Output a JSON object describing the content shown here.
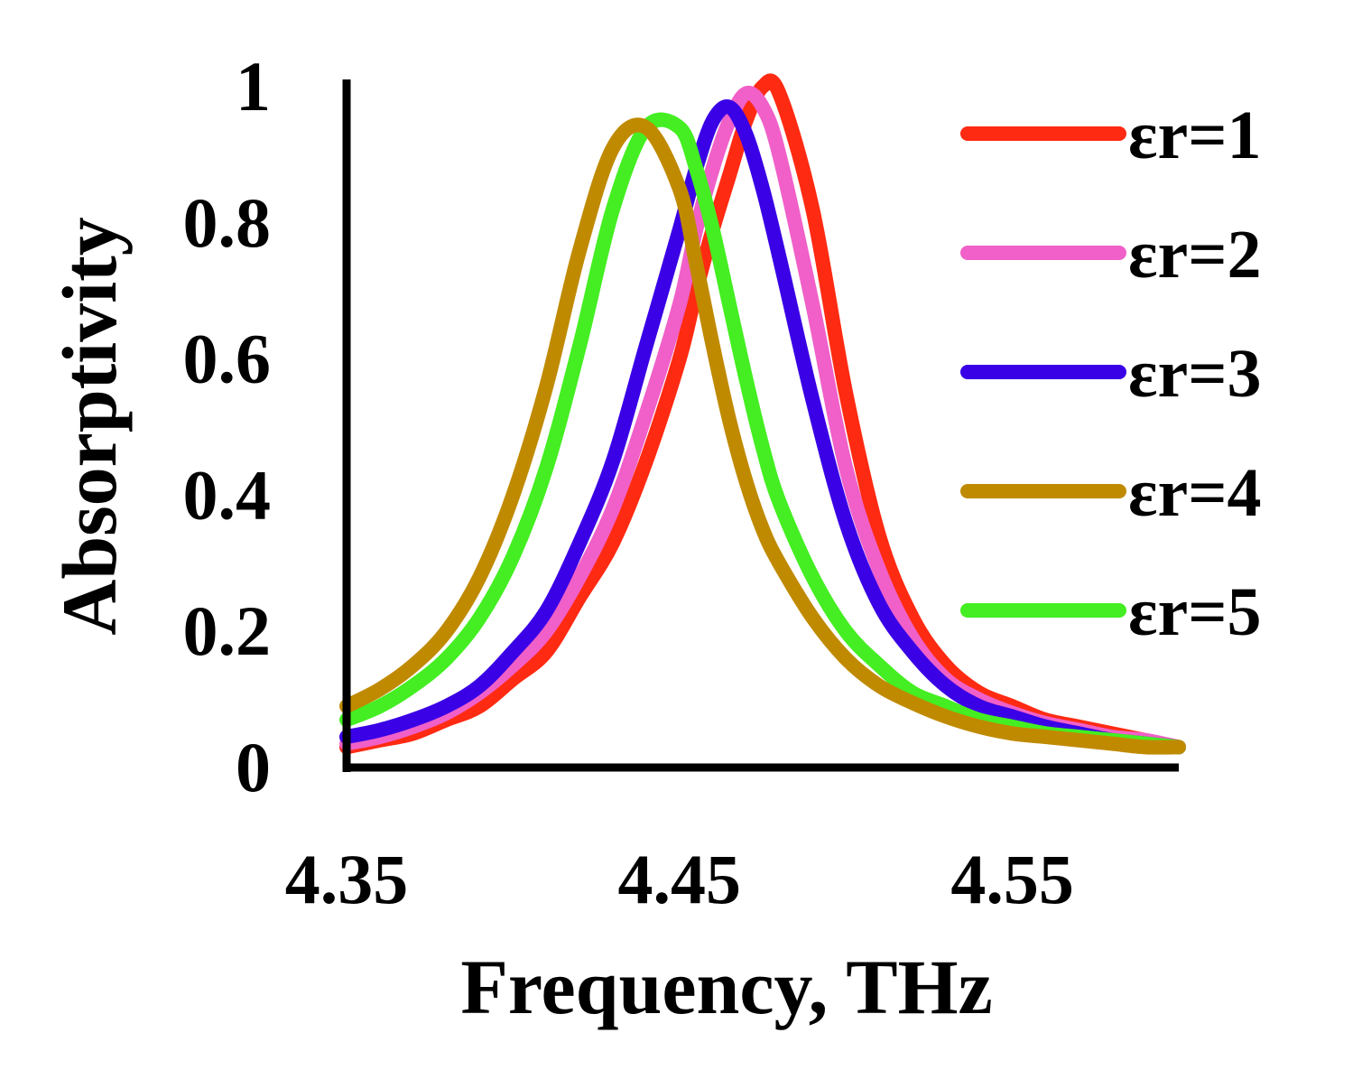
{
  "chart_data": {
    "type": "line",
    "title": "",
    "xlabel": "Frequency, THz",
    "ylabel": "Absorptivity",
    "xlim": [
      4.35,
      4.6
    ],
    "ylim": [
      0,
      1
    ],
    "x_ticks": [
      {
        "value": 4.35,
        "label": "4.35"
      },
      {
        "value": 4.45,
        "label": "4.45"
      },
      {
        "value": 4.55,
        "label": "4.55"
      }
    ],
    "y_ticks": [
      {
        "value": 0,
        "label": "0"
      },
      {
        "value": 0.2,
        "label": "0.2"
      },
      {
        "value": 0.4,
        "label": "0.4"
      },
      {
        "value": 0.6,
        "label": "0.6"
      },
      {
        "value": 0.8,
        "label": "0.8"
      },
      {
        "value": 1,
        "label": "1"
      }
    ],
    "grid": false,
    "legend_position": "right",
    "x": [
      4.35,
      4.36,
      4.37,
      4.38,
      4.39,
      4.4,
      4.41,
      4.42,
      4.43,
      4.44,
      4.45,
      4.455,
      4.46,
      4.465,
      4.47,
      4.475,
      4.48,
      4.49,
      4.5,
      4.51,
      4.52,
      4.53,
      4.54,
      4.55,
      4.56,
      4.57,
      4.58,
      4.59,
      4.6
    ],
    "series": [
      {
        "name": "εr=1",
        "color": "#ff2a12",
        "values": [
          0.03,
          0.04,
          0.05,
          0.07,
          0.09,
          0.13,
          0.17,
          0.25,
          0.33,
          0.45,
          0.6,
          0.7,
          0.79,
          0.87,
          0.95,
          1.0,
          0.99,
          0.82,
          0.55,
          0.34,
          0.22,
          0.15,
          0.11,
          0.09,
          0.07,
          0.06,
          0.05,
          0.04,
          0.03
        ]
      },
      {
        "name": "εr=2",
        "color": "#f060c8",
        "values": [
          0.035,
          0.045,
          0.06,
          0.08,
          0.11,
          0.15,
          0.2,
          0.28,
          0.38,
          0.52,
          0.68,
          0.79,
          0.88,
          0.95,
          0.99,
          0.97,
          0.9,
          0.68,
          0.44,
          0.29,
          0.19,
          0.13,
          0.1,
          0.08,
          0.065,
          0.055,
          0.045,
          0.04,
          0.03
        ]
      },
      {
        "name": "εr=3",
        "color": "#3a00e6",
        "values": [
          0.045,
          0.055,
          0.07,
          0.09,
          0.12,
          0.17,
          0.23,
          0.33,
          0.45,
          0.62,
          0.79,
          0.88,
          0.95,
          0.97,
          0.93,
          0.85,
          0.75,
          0.54,
          0.36,
          0.24,
          0.17,
          0.12,
          0.09,
          0.075,
          0.06,
          0.05,
          0.04,
          0.035,
          0.03
        ]
      },
      {
        "name": "εr=4",
        "color": "#c08a00",
        "values": [
          0.09,
          0.115,
          0.15,
          0.2,
          0.28,
          0.4,
          0.56,
          0.76,
          0.91,
          0.94,
          0.85,
          0.74,
          0.62,
          0.51,
          0.42,
          0.35,
          0.3,
          0.22,
          0.16,
          0.12,
          0.095,
          0.075,
          0.06,
          0.05,
          0.045,
          0.04,
          0.035,
          0.03,
          0.03
        ]
      },
      {
        "name": "εr=5",
        "color": "#44ee22",
        "values": [
          0.07,
          0.09,
          0.12,
          0.16,
          0.22,
          0.31,
          0.44,
          0.62,
          0.82,
          0.94,
          0.94,
          0.88,
          0.79,
          0.68,
          0.57,
          0.47,
          0.39,
          0.28,
          0.2,
          0.15,
          0.11,
          0.09,
          0.07,
          0.06,
          0.05,
          0.045,
          0.04,
          0.035,
          0.03
        ]
      }
    ]
  }
}
